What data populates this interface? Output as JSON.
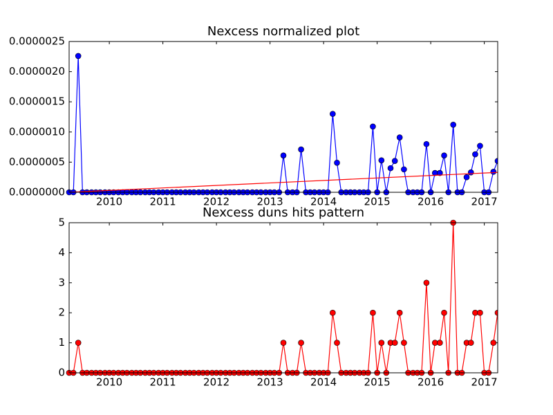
{
  "chart_data": [
    {
      "type": "line",
      "title": "Nexcess normalized plot",
      "x": [
        2009.25,
        2009.33,
        2009.42,
        2009.5,
        2009.58,
        2009.67,
        2009.75,
        2009.83,
        2009.92,
        2010.0,
        2010.08,
        2010.17,
        2010.25,
        2010.33,
        2010.42,
        2010.5,
        2010.58,
        2010.67,
        2010.75,
        2010.83,
        2010.92,
        2011.0,
        2011.08,
        2011.17,
        2011.25,
        2011.33,
        2011.42,
        2011.5,
        2011.58,
        2011.67,
        2011.75,
        2011.83,
        2011.92,
        2012.0,
        2012.08,
        2012.17,
        2012.25,
        2012.33,
        2012.42,
        2012.5,
        2012.58,
        2012.67,
        2012.75,
        2012.83,
        2012.92,
        2013.0,
        2013.08,
        2013.17,
        2013.25,
        2013.33,
        2013.42,
        2013.5,
        2013.58,
        2013.67,
        2013.75,
        2013.83,
        2013.92,
        2014.0,
        2014.08,
        2014.17,
        2014.25,
        2014.33,
        2014.42,
        2014.5,
        2014.58,
        2014.67,
        2014.75,
        2014.83,
        2014.92,
        2015.0,
        2015.08,
        2015.17,
        2015.25,
        2015.33,
        2015.42,
        2015.5,
        2015.58,
        2015.67,
        2015.75,
        2015.83,
        2015.92,
        2016.0,
        2016.08,
        2016.17,
        2016.25,
        2016.33,
        2016.42,
        2016.5,
        2016.58,
        2016.67,
        2016.75,
        2016.83,
        2016.92,
        2017.0,
        2017.08,
        2017.17,
        2017.25
      ],
      "series": [
        {
          "color": "#0000ff",
          "marker": true,
          "values": [
            0,
            0,
            2.26e-06,
            0,
            0,
            0,
            0,
            0,
            0,
            0,
            0,
            0,
            0,
            0,
            0,
            0,
            0,
            0,
            0,
            0,
            0,
            0,
            0,
            0,
            0,
            0,
            0,
            0,
            0,
            0,
            0,
            0,
            0,
            0,
            0,
            0,
            0,
            0,
            0,
            0,
            0,
            0,
            0,
            0,
            0,
            0,
            0,
            0,
            6.1e-07,
            0,
            0,
            0,
            7.1e-07,
            0,
            0,
            0,
            0,
            0,
            0,
            1.3e-06,
            4.9e-07,
            0,
            0,
            0,
            0,
            0,
            0,
            0,
            1.09e-06,
            0,
            5.3e-07,
            0,
            4e-07,
            5.2e-07,
            9.1e-07,
            3.8e-07,
            0,
            0,
            0,
            0,
            8e-07,
            0,
            3.2e-07,
            3.2e-07,
            6.1e-07,
            0,
            1.12e-06,
            0,
            0,
            2.5e-07,
            3.3e-07,
            6.3e-07,
            7.7e-07,
            0,
            0,
            3.4e-07,
            5.2e-07
          ]
        },
        {
          "color": "#ff0000",
          "marker": false,
          "x": [
            2009.25,
            2017.25
          ],
          "values": [
            0,
            3.3e-07
          ]
        }
      ],
      "xlim": [
        2009.25,
        2017.25
      ],
      "xticks": [
        2010,
        2011,
        2012,
        2013,
        2014,
        2015,
        2016,
        2017
      ],
      "ylim": [
        0,
        2.5e-06
      ],
      "yticks": [
        {
          "value": 0,
          "label": "0.0000000"
        },
        {
          "value": 5e-07,
          "label": "0.0000005"
        },
        {
          "value": 1e-06,
          "label": "0.0000010"
        },
        {
          "value": 1.5e-06,
          "label": "0.0000015"
        },
        {
          "value": 2e-06,
          "label": "0.0000020"
        },
        {
          "value": 2.5e-06,
          "label": "0.0000025"
        }
      ]
    },
    {
      "type": "line",
      "title": "Nexcess duns hits pattern",
      "x": [
        2009.25,
        2009.33,
        2009.42,
        2009.5,
        2009.58,
        2009.67,
        2009.75,
        2009.83,
        2009.92,
        2010.0,
        2010.08,
        2010.17,
        2010.25,
        2010.33,
        2010.42,
        2010.5,
        2010.58,
        2010.67,
        2010.75,
        2010.83,
        2010.92,
        2011.0,
        2011.08,
        2011.17,
        2011.25,
        2011.33,
        2011.42,
        2011.5,
        2011.58,
        2011.67,
        2011.75,
        2011.83,
        2011.92,
        2012.0,
        2012.08,
        2012.17,
        2012.25,
        2012.33,
        2012.42,
        2012.5,
        2012.58,
        2012.67,
        2012.75,
        2012.83,
        2012.92,
        2013.0,
        2013.08,
        2013.17,
        2013.25,
        2013.33,
        2013.42,
        2013.5,
        2013.58,
        2013.67,
        2013.75,
        2013.83,
        2013.92,
        2014.0,
        2014.08,
        2014.17,
        2014.25,
        2014.33,
        2014.42,
        2014.5,
        2014.58,
        2014.67,
        2014.75,
        2014.83,
        2014.92,
        2015.0,
        2015.08,
        2015.17,
        2015.25,
        2015.33,
        2015.42,
        2015.5,
        2015.58,
        2015.67,
        2015.75,
        2015.83,
        2015.92,
        2016.0,
        2016.08,
        2016.17,
        2016.25,
        2016.33,
        2016.42,
        2016.5,
        2016.58,
        2016.67,
        2016.75,
        2016.83,
        2016.92,
        2017.0,
        2017.08,
        2017.17,
        2017.25
      ],
      "series": [
        {
          "color": "#ff0000",
          "marker": true,
          "values": [
            0,
            0,
            1,
            0,
            0,
            0,
            0,
            0,
            0,
            0,
            0,
            0,
            0,
            0,
            0,
            0,
            0,
            0,
            0,
            0,
            0,
            0,
            0,
            0,
            0,
            0,
            0,
            0,
            0,
            0,
            0,
            0,
            0,
            0,
            0,
            0,
            0,
            0,
            0,
            0,
            0,
            0,
            0,
            0,
            0,
            0,
            0,
            0,
            1,
            0,
            0,
            0,
            1,
            0,
            0,
            0,
            0,
            0,
            0,
            2,
            1,
            0,
            0,
            0,
            0,
            0,
            0,
            0,
            2,
            0,
            1,
            0,
            1,
            1,
            2,
            1,
            0,
            0,
            0,
            0,
            3,
            0,
            1,
            1,
            2,
            0,
            5,
            0,
            0,
            1,
            1,
            2,
            2,
            0,
            0,
            1,
            2
          ]
        }
      ],
      "xlim": [
        2009.25,
        2017.25
      ],
      "xticks": [
        2010,
        2011,
        2012,
        2013,
        2014,
        2015,
        2016,
        2017
      ],
      "ylim": [
        0,
        5
      ],
      "yticks": [
        0,
        1,
        2,
        3,
        4,
        5
      ]
    }
  ]
}
